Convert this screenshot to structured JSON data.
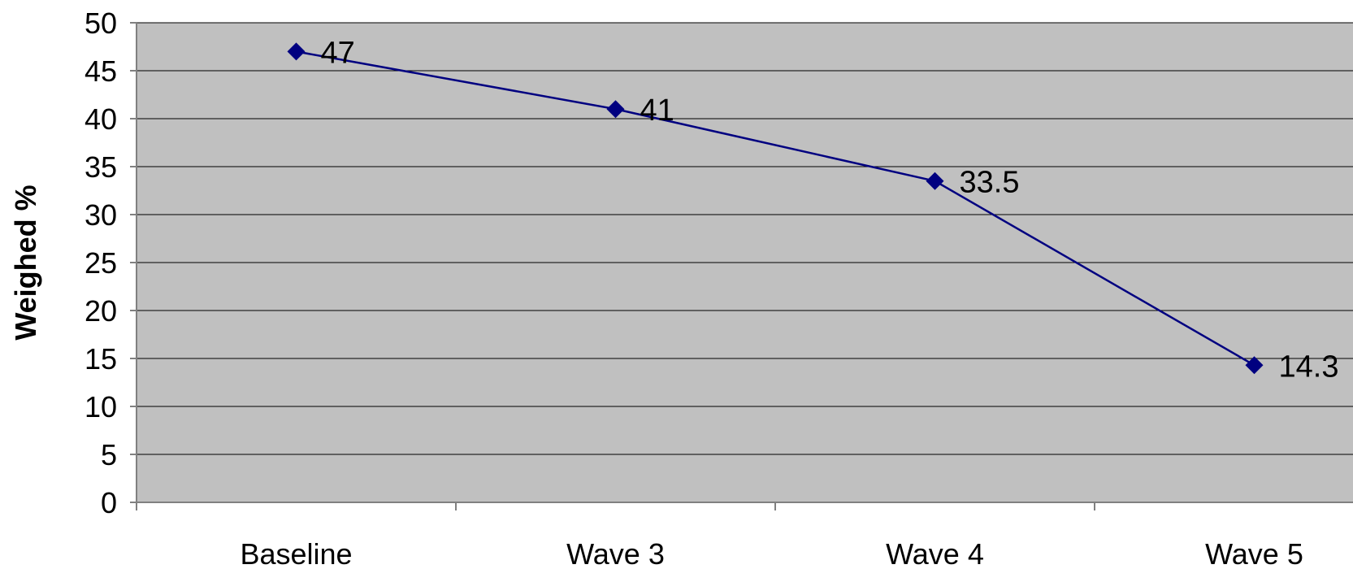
{
  "chart_data": {
    "type": "line",
    "categories": [
      "Baseline",
      "Wave 3",
      "Wave 4",
      "Wave 5"
    ],
    "series": [
      {
        "values": [
          47,
          41,
          33.5,
          14.3
        ]
      }
    ],
    "data_labels": [
      "47",
      "41",
      "33.5",
      "14.3"
    ],
    "title": "",
    "xlabel": "",
    "ylabel": "Weighed %",
    "ylim": [
      0,
      50
    ],
    "yticks": [
      0,
      5,
      10,
      15,
      20,
      25,
      30,
      35,
      40,
      45,
      50
    ],
    "ytick_labels": [
      "0",
      "5",
      "10",
      "15",
      "20",
      "25",
      "30",
      "35",
      "40",
      "45",
      "50"
    ],
    "grid": true,
    "legend": "none",
    "marker": "diamond",
    "colors": {
      "plot_background": "#c0c0c0",
      "line": "#000080",
      "marker": "#000080",
      "gridline": "#000000",
      "axis": "#808080"
    }
  }
}
